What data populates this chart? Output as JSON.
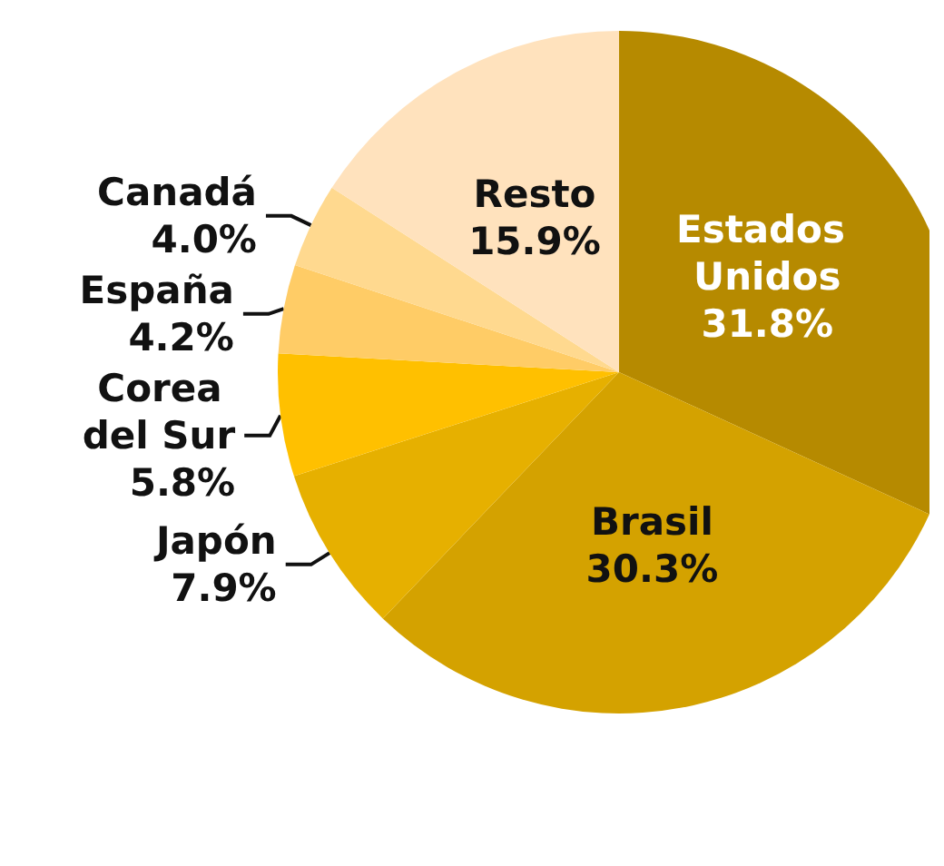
{
  "chart_data": {
    "type": "pie",
    "categories": [
      "Estados Unidos",
      "Brasil",
      "Japón",
      "Corea del Sur",
      "España",
      "Canadá",
      "Resto"
    ],
    "values": [
      31.8,
      30.3,
      7.9,
      5.8,
      4.2,
      4.0,
      15.9
    ],
    "colors": [
      "#b68a00",
      "#d4a200",
      "#e6b000",
      "#ffc000",
      "#ffcc66",
      "#ffd98f",
      "#ffe2bd"
    ],
    "value_labels": [
      "31.8%",
      "30.3%",
      "7.9%",
      "5.8%",
      "4.2%",
      "4.0%",
      "15.9%"
    ],
    "legend": false
  }
}
